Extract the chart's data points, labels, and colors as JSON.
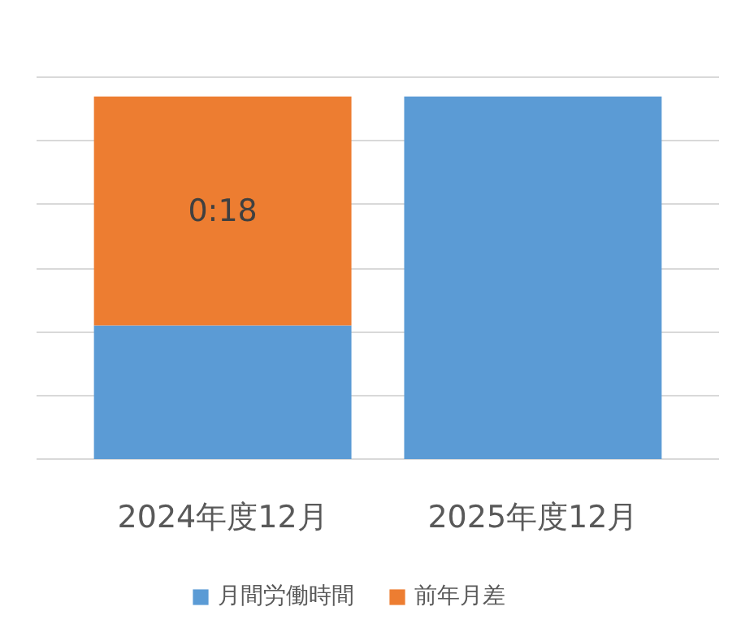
{
  "chart_data": {
    "type": "bar",
    "stacked": true,
    "categories": [
      "2024年度12月",
      "2025年度12月"
    ],
    "series": [
      {
        "name": "月間労働時間",
        "color": "#5b9bd5",
        "values": [
          10.5,
          28.5
        ]
      },
      {
        "name": "前年月差",
        "color": "#ed7d31",
        "values": [
          18,
          0
        ],
        "value_labels": [
          "0:18",
          null
        ]
      }
    ],
    "grid": "y",
    "legend": "bottom",
    "tick_labels": "x"
  }
}
